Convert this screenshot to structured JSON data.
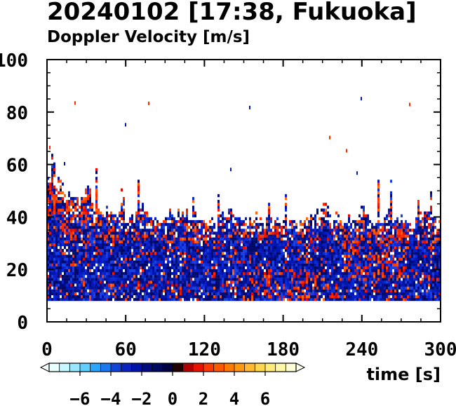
{
  "chart_data": {
    "type": "heatmap",
    "title": "20240102 [17:38, Fukuoka]",
    "subtitle": "Doppler Velocity [m/s]",
    "xlabel": "time [s]",
    "ylabel": "",
    "xlim": [
      0,
      300
    ],
    "ylim": [
      0,
      100
    ],
    "x_ticks": [
      0,
      60,
      120,
      180,
      240,
      300
    ],
    "y_ticks": [
      0,
      20,
      40,
      60,
      80,
      100
    ],
    "grid": false,
    "data_region": {
      "x_range": [
        0,
        300
      ],
      "y_bottom": 8,
      "echo_top_typical": 60,
      "echo_top_max": 85,
      "description_values": {
        "low_layer_velocity": -2,
        "mid_layer_velocity": -1,
        "upper_layer_velocity": 1
      }
    },
    "colorbar": {
      "label": "",
      "range": [
        -8,
        8
      ],
      "ticks": [
        -6,
        -4,
        -2,
        0,
        2,
        4,
        6
      ],
      "tick_labels": [
        "−6",
        "−4",
        "−2",
        "0",
        "2",
        "4",
        "6"
      ],
      "extend": "both",
      "colors": [
        "#e8ffff",
        "#c8f8ff",
        "#9ae8ff",
        "#5fcfff",
        "#2aa6ff",
        "#1a78f0",
        "#1044d8",
        "#0a22c0",
        "#0014a8",
        "#000c80",
        "#000860",
        "#000040",
        "#200000",
        "#b00000",
        "#e81400",
        "#ff3a00",
        "#ff5a00",
        "#ff7a00",
        "#ff9a10",
        "#ffba30",
        "#ffd850",
        "#ffec78",
        "#fff8a8",
        "#fffcd8"
      ]
    }
  }
}
